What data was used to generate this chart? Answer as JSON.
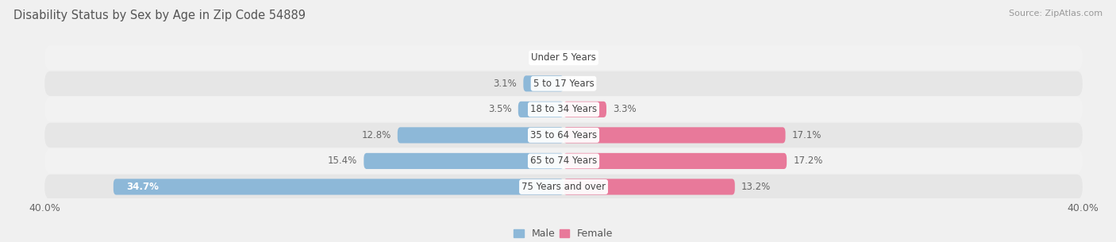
{
  "title": "Disability Status by Sex by Age in Zip Code 54889",
  "source": "Source: ZipAtlas.com",
  "categories": [
    "Under 5 Years",
    "5 to 17 Years",
    "18 to 34 Years",
    "35 to 64 Years",
    "65 to 74 Years",
    "75 Years and over"
  ],
  "male_values": [
    0.0,
    3.1,
    3.5,
    12.8,
    15.4,
    34.7
  ],
  "female_values": [
    0.0,
    0.0,
    3.3,
    17.1,
    17.2,
    13.2
  ],
  "male_color": "#8db8d8",
  "female_color": "#e8799a",
  "bar_height": 0.62,
  "xlim": [
    -40,
    40
  ],
  "xticklabels": [
    "40.0%",
    "40.0%"
  ],
  "background_color": "#f0f0f0",
  "row_colors": [
    "#f2f2f2",
    "#e6e6e6"
  ],
  "title_fontsize": 10.5,
  "source_fontsize": 8,
  "label_fontsize": 8.5,
  "category_fontsize": 8.5,
  "legend_fontsize": 9
}
